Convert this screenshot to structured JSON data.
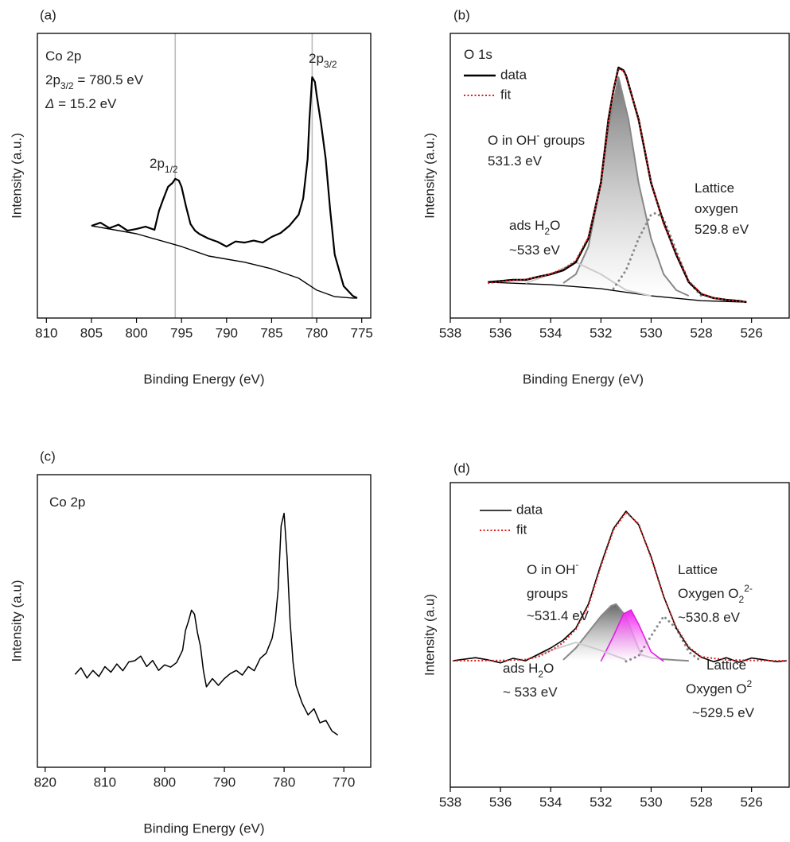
{
  "chart_data": [
    {
      "type": "line",
      "label": "(a)",
      "xlabel": "Binding Energy (eV)",
      "ylabel": "Intensity (a.u.)",
      "xlim": [
        811,
        774
      ],
      "xticks": [
        810,
        805,
        800,
        795,
        790,
        785,
        780,
        775
      ],
      "ylim": [
        0,
        100
      ],
      "vlines": [
        795.7,
        780.5
      ],
      "vline_color": "#bbbbbb",
      "series": [
        {
          "color": "#000000",
          "style": "solid",
          "width": 2.2,
          "x": [
            805,
            804,
            803,
            802,
            801,
            800,
            799,
            798,
            797.5,
            797,
            796.5,
            796,
            795.7,
            795.3,
            795,
            794.5,
            794,
            793.5,
            793,
            792,
            791,
            790,
            789,
            788,
            787,
            786,
            785,
            784,
            783,
            782,
            781.5,
            781,
            780.8,
            780.5,
            780.2,
            780,
            779.5,
            779,
            778.5,
            778,
            777,
            776,
            775.5
          ],
          "values": [
            32.4,
            33.5,
            31.6,
            32.8,
            30.7,
            31.3,
            32.1,
            31.0,
            37.7,
            42,
            46.1,
            47.5,
            48.9,
            48.3,
            46.1,
            39.1,
            33,
            30.7,
            29.5,
            27.9,
            26.8,
            25.1,
            26.9,
            26.5,
            27.2,
            26.5,
            28.5,
            29.9,
            32.5,
            36.3,
            42,
            55.9,
            70,
            84.6,
            83,
            78.2,
            68,
            55.9,
            38,
            22.3,
            11.2,
            7.8,
            7.0
          ]
        },
        {
          "color": "#000000",
          "style": "solid",
          "width": 1.4,
          "x": [
            805,
            800,
            795,
            792,
            788,
            785,
            782,
            780,
            778,
            776,
            775.5
          ],
          "values": [
            32.4,
            29.6,
            25.1,
            21.8,
            19.6,
            17.3,
            14.0,
            9.8,
            7.5,
            7.0,
            7.0
          ]
        }
      ],
      "annotations": [
        {
          "parts": [
            "Co 2p"
          ],
          "color": "#222222"
        },
        {
          "parts": [
            "2p",
            {
              "sub": "3/2"
            },
            " = 780.5 eV"
          ],
          "color": "#222222"
        },
        {
          "parts": [
            {
              "em": "Δ"
            },
            " = 15.2 eV"
          ],
          "color": "#222222"
        },
        {
          "parts": [
            "2p",
            {
              "sub": "1/2"
            }
          ],
          "color": "#222222"
        },
        {
          "parts": [
            "2p",
            {
              "sub": "3/2"
            }
          ],
          "color": "#222222"
        }
      ]
    },
    {
      "type": "line",
      "label": "(b)",
      "xlabel": "Binding Energy (eV)",
      "ylabel": "Intensity (a.u.)",
      "xlim": [
        538,
        524.5
      ],
      "xticks": [
        538,
        536,
        534,
        532,
        530,
        528,
        526
      ],
      "ylim": [
        0,
        100
      ],
      "legend": "upper left",
      "series": [
        {
          "name": "data",
          "color": "#000000",
          "style": "solid",
          "width": 2.5,
          "x": [
            536.5,
            536,
            535.5,
            535,
            534.5,
            534,
            533.5,
            533,
            532.5,
            532,
            531.7,
            531.5,
            531.3,
            531.1,
            531,
            530.5,
            530,
            529.5,
            529,
            528.5,
            528,
            527.5,
            527,
            526.5,
            526.2
          ],
          "values": [
            12.6,
            13.0,
            13.4,
            13.4,
            14.5,
            15.4,
            16.8,
            19.6,
            27.9,
            47.5,
            69.8,
            80,
            88.0,
            87,
            85.2,
            69.8,
            47.5,
            33.5,
            22.3,
            12.6,
            8.4,
            7,
            6.4,
            6,
            5.6
          ]
        },
        {
          "name": "fit",
          "color": "#e02020",
          "style": "dotted",
          "width": 2,
          "x": [
            536.5,
            536,
            535.5,
            535,
            534.5,
            534,
            533.5,
            533,
            532.5,
            532,
            531.7,
            531.5,
            531.3,
            531.1,
            531,
            530.5,
            530,
            529.5,
            529,
            528.5,
            528,
            527.5,
            527,
            526.5,
            526.2
          ],
          "values": [
            12.2,
            12.8,
            13.2,
            13.6,
            14.3,
            15.6,
            17.2,
            20.2,
            28.5,
            47,
            69,
            80.5,
            87.5,
            86.8,
            84.8,
            70.2,
            47.8,
            33,
            22.8,
            13,
            8.6,
            7.1,
            6.3,
            5.9,
            5.6
          ]
        },
        {
          "color": "#000000",
          "style": "solid",
          "width": 1.4,
          "x": [
            536.5,
            534,
            532,
            530,
            528,
            526.2
          ],
          "values": [
            12.6,
            11.7,
            10.3,
            7.8,
            6.1,
            5.6
          ]
        },
        {
          "color": "#888888",
          "style": "solid",
          "width": 2,
          "fill": "#777777",
          "x": [
            533.5,
            533,
            532.5,
            532,
            531.7,
            531.3,
            530.9,
            530.5,
            530,
            529.5,
            529,
            528.5
          ],
          "values": [
            12.3,
            15.4,
            25.1,
            47.5,
            67.0,
            84.6,
            69.8,
            47.5,
            27.9,
            15.4,
            9.8,
            7.8
          ]
        },
        {
          "color": "#cccccc",
          "style": "solid",
          "width": 2,
          "x": [
            535,
            534,
            533,
            532,
            531,
            530
          ],
          "values": [
            12.3,
            15.4,
            19.6,
            15.4,
            9.8,
            7.8
          ]
        },
        {
          "color": "#888888",
          "style": "dotted",
          "width": 3,
          "x": [
            531.5,
            531,
            530.5,
            530,
            529.8,
            529.5,
            529,
            528.5,
            528
          ],
          "values": [
            10.3,
            16.8,
            27.9,
            36.3,
            36.9,
            34.9,
            23.7,
            12.6,
            7.8
          ]
        }
      ],
      "annotations": [
        {
          "parts": [
            "O 1s"
          ],
          "color": "#222222"
        },
        {
          "parts": [
            "O in OH",
            {
              "sup": "-"
            },
            " groups"
          ],
          "color": "#777777"
        },
        {
          "parts": [
            "531.3 eV"
          ],
          "color": "#777777"
        },
        {
          "parts": [
            "ads H",
            {
              "sub": "2"
            },
            "O"
          ],
          "color": "#aaaaaa"
        },
        {
          "parts": [
            "~533 eV"
          ],
          "color": "#aaaaaa"
        },
        {
          "parts": [
            "Lattice"
          ],
          "color": "#888888"
        },
        {
          "parts": [
            "oxygen"
          ],
          "color": "#888888"
        },
        {
          "parts": [
            "529.8 eV"
          ],
          "color": "#888888"
        }
      ]
    },
    {
      "type": "line",
      "label": "(c)",
      "xlabel": "Binding Energy (eV)",
      "ylabel": "Intensity (a.u)",
      "xlim": [
        821.3,
        765.5
      ],
      "xticks": [
        820,
        810,
        800,
        790,
        780,
        770
      ],
      "ylim": [
        0,
        100
      ],
      "series": [
        {
          "color": "#000000",
          "style": "solid",
          "width": 1.5,
          "x": [
            815,
            814,
            813,
            812,
            811,
            810,
            809,
            808,
            807,
            806,
            805,
            804,
            803,
            802,
            801,
            800,
            799,
            798,
            797,
            796.5,
            796,
            795.5,
            795,
            794.5,
            794,
            793.5,
            793,
            792,
            791,
            790,
            789,
            788,
            787,
            786,
            785,
            784,
            783,
            782,
            781.5,
            781,
            780.5,
            780,
            779.5,
            779,
            778.5,
            778,
            777,
            776,
            775,
            774,
            773,
            772,
            771
          ],
          "values": [
            31.7,
            34,
            30.5,
            33.1,
            31,
            34.4,
            32.5,
            35.3,
            33,
            36,
            36.4,
            38,
            34.4,
            36.5,
            33.1,
            35,
            34.2,
            35.8,
            40,
            46.8,
            50,
            53.7,
            52.3,
            46,
            41.3,
            33,
            27.5,
            30.3,
            28,
            30.3,
            32,
            33.1,
            31.5,
            34.4,
            33,
            37.2,
            39,
            44.1,
            50,
            60.6,
            82.6,
            86.8,
            71.6,
            50,
            35.8,
            28,
            22,
            17.9,
            20,
            15.2,
            16,
            12.4,
            11.0
          ]
        }
      ],
      "annotations": [
        {
          "parts": [
            "Co 2p"
          ],
          "color": "#222222"
        }
      ]
    },
    {
      "type": "line",
      "label": "(d)",
      "xlabel": "Binding Energy (eV)",
      "ylabel": "Intensity (a.u)",
      "xlim": [
        538,
        524.5
      ],
      "xticks": [
        538,
        536,
        534,
        532,
        530,
        528,
        526
      ],
      "ylim": [
        0,
        100
      ],
      "legend": "upper left",
      "series": [
        {
          "name": "data",
          "color": "#000000",
          "style": "solid",
          "width": 1.6,
          "x": [
            537.9,
            537,
            536.5,
            536,
            535.5,
            535,
            534.5,
            534,
            533.5,
            533,
            532.5,
            532,
            531.5,
            531,
            530.5,
            530,
            529.5,
            529,
            528.5,
            528,
            527.5,
            527,
            526.5,
            526,
            525,
            524.6
          ],
          "values": [
            41.5,
            42.5,
            41.8,
            40.8,
            42.3,
            41.5,
            43.6,
            45.7,
            48.3,
            52.2,
            60.1,
            73.1,
            84.9,
            90.6,
            86.2,
            75.7,
            62.7,
            52.2,
            45.7,
            42.6,
            41.2,
            42.5,
            41.0,
            42.4,
            41.2,
            41.5
          ]
        },
        {
          "name": "fit",
          "color": "#e02020",
          "style": "dotted",
          "width": 2,
          "x": [
            537.9,
            536,
            535,
            534.5,
            534,
            533.5,
            533,
            532.5,
            532,
            531.5,
            531,
            530.5,
            530,
            529.5,
            529,
            528.5,
            528,
            527,
            526,
            524.6
          ],
          "values": [
            41.5,
            41.6,
            41.9,
            42.8,
            44.8,
            47.5,
            51.8,
            59.5,
            72.5,
            84.5,
            90.2,
            86.5,
            75.2,
            62.5,
            52.5,
            46,
            42.8,
            41.8,
            41.6,
            41.5
          ]
        },
        {
          "color": "#888888",
          "style": "solid",
          "width": 2,
          "fill": "#666666",
          "x": [
            533.5,
            533,
            532.5,
            532,
            531.6,
            531.4,
            531,
            530.7,
            530.4,
            530,
            529.5,
            529,
            528.5
          ],
          "values": [
            41.8,
            45.7,
            50.9,
            56.1,
            59.5,
            60.1,
            56.1,
            49.6,
            43.5,
            42.5,
            42,
            41.7,
            41.5
          ]
        },
        {
          "color": "#e020e0",
          "style": "solid",
          "width": 1.6,
          "fill": "#ee22ee",
          "x": [
            532,
            531.5,
            531.1,
            530.8,
            530.5,
            530,
            529.5
          ],
          "values": [
            41.3,
            49.6,
            56.9,
            58.2,
            53.5,
            44.4,
            41.3
          ]
        },
        {
          "color": "#cccccc",
          "style": "solid",
          "width": 2,
          "x": [
            535,
            534,
            533,
            532,
            531
          ],
          "values": [
            41.8,
            44.9,
            47.5,
            44.9,
            41.8
          ]
        },
        {
          "color": "#888888",
          "style": "dotted",
          "width": 3,
          "x": [
            531,
            530.5,
            530,
            529.5,
            529,
            528.5,
            528
          ],
          "values": [
            41.3,
            43.1,
            49.6,
            56.1,
            52.2,
            44.4,
            41.3
          ]
        }
      ],
      "annotations": [
        {
          "parts": [
            "Lattice"
          ],
          "color": "#e020e0"
        },
        {
          "parts": [
            "Oxygen O",
            {
              "sub": "2"
            },
            {
              "sup": "2-"
            }
          ],
          "color": "#e020e0"
        },
        {
          "parts": [
            "~530.8 eV"
          ],
          "color": "#e020e0"
        },
        {
          "parts": [
            "O in OH",
            {
              "sup": "-"
            }
          ],
          "color": "#333333"
        },
        {
          "parts": [
            "groups"
          ],
          "color": "#333333"
        },
        {
          "parts": [
            "~531.4 eV"
          ],
          "color": "#333333"
        },
        {
          "parts": [
            "ads H",
            {
              "sub": "2"
            },
            "O"
          ],
          "color": "#999999"
        },
        {
          "parts": [
            "~ 533 eV"
          ],
          "color": "#999999"
        },
        {
          "parts": [
            "Lattice"
          ],
          "color": "#888888"
        },
        {
          "parts": [
            "Oxygen O",
            {
              "sup": "2"
            }
          ],
          "color": "#888888"
        },
        {
          "parts": [
            "~529.5 eV"
          ],
          "color": "#888888"
        }
      ]
    }
  ]
}
